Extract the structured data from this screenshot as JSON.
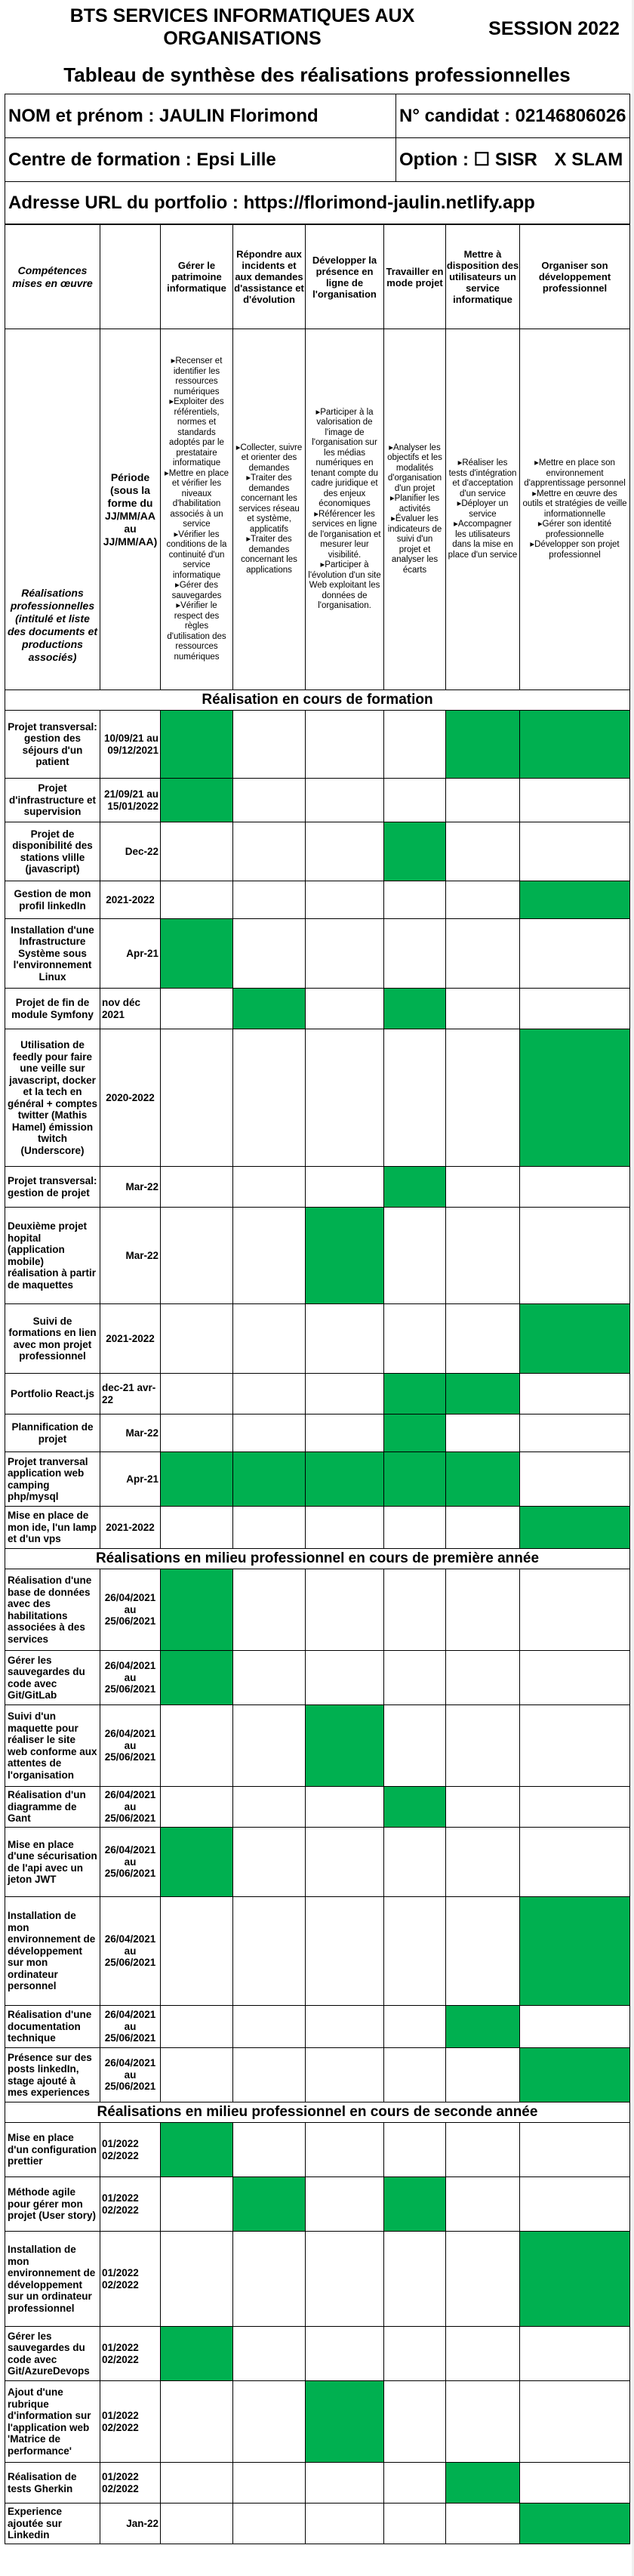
{
  "header": {
    "title_left": "BTS SERVICES INFORMATIQUES AUX ORGANISATIONS",
    "session": "SESSION 2022",
    "subtitle": "Tableau de synthèse des réalisations professionnelles"
  },
  "info": {
    "name": "NOM et prénom : JAULIN Florimond",
    "candidate": "N° candidat : 02146806026",
    "centre": "Centre de formation : Epsi Lille",
    "option_label": "Option :",
    "option_sisr": "☐ SISR",
    "option_slam": "X SLAM",
    "portfolio": "Adresse URL du portfolio : https://florimond-jaulin.netlify.app"
  },
  "competences": {
    "label": "Compétences mises en œuvre",
    "realisations_label": "Réalisations professionnelles (intitulé et liste des documents et productions associés)",
    "periode_label": "Période (sous la forme du JJ/MM/AA au JJ/MM/AA)",
    "columns": [
      "Gérer le patrimoine informatique",
      "Répondre aux incidents et aux demandes d'assistance et d'évolution",
      "Développer la présence en ligne de l'organisation",
      "Travailler en mode projet",
      "Mettre à disposition des utilisateurs un service informatique",
      "Organiser son développement professionnel"
    ],
    "descriptions": [
      "▸Recenser et identifier les ressources numériques ▸Exploiter des référentiels, normes et standards adoptés par le prestataire informatique ▸Mettre en place et vérifier les niveaux d'habilitation associés à un service ▸Vérifier les conditions de la continuité d'un service informatique ▸Gérer des sauvegardes ▸Vérifier le respect des règles d'utilisation des ressources numériques",
      "▸Collecter, suivre et orienter des demandes ▸Traiter des demandes concernant les services réseau et système, applicatifs ▸Traiter des demandes concernant les applications",
      "▸Participer à la valorisation de l'image de l'organisation sur les médias numériques en tenant compte du cadre juridique et des enjeux économiques ▸Référencer les services en ligne de l'organisation et mesurer leur visibilité. ▸Participer à l'évolution d'un site Web exploitant les données de l'organisation.",
      "▸Analyser les objectifs et les modalités d'organisation d'un projet ▸Planifier les activités ▸Évaluer les indicateurs de suivi d'un projet et analyser les écarts",
      "▸Réaliser les tests d'intégration et d'acceptation d'un service ▸Déployer un service ▸Accompagner les utilisateurs dans la mise en place d'un service",
      "▸Mettre en place son environnement d'apprentissage personnel ▸Mettre en œuvre des outils et stratégies de veille informationnelle ▸Gérer son identité professionnelle ▸Développer son projet professionnel"
    ]
  },
  "sections": [
    {
      "title": "Réalisation en cours de formation",
      "rows": [
        {
          "name": "Projet transversal: gestion des séjours d'un patient",
          "periode": "10/09/21 au 09/12/2021",
          "align": "r",
          "marks": [
            1,
            0,
            0,
            0,
            1,
            1
          ],
          "h": 90,
          "center_name": true
        },
        {
          "name": "Projet d'infrastructure et supervision",
          "periode": "21/09/21 au 15/01/2022",
          "align": "r",
          "marks": [
            1,
            0,
            0,
            0,
            0,
            0
          ],
          "h": 58,
          "center_name": true
        },
        {
          "name": "Projet de disponibilité des stations vlille (javascript)",
          "periode": "Dec-22",
          "align": "r",
          "marks": [
            0,
            0,
            0,
            1,
            0,
            0
          ],
          "h": 78,
          "center_name": true
        },
        {
          "name": "Gestion de mon profil linkedIn",
          "periode": "2021-2022",
          "align": "c",
          "marks": [
            0,
            0,
            0,
            0,
            0,
            1
          ],
          "h": 50,
          "center_name": true
        },
        {
          "name": "Installation d'une Infrastructure Système sous l'environnement Linux",
          "periode": "Apr-21",
          "align": "r",
          "marks": [
            1,
            0,
            0,
            0,
            0,
            0
          ],
          "h": 92,
          "center_name": true
        },
        {
          "name": "Projet de fin de module Symfony",
          "periode": "nov déc 2021",
          "align": "l",
          "marks": [
            0,
            1,
            0,
            1,
            0,
            0
          ],
          "h": 54,
          "center_name": true
        },
        {
          "name": "Utilisation de feedly pour faire une veille sur javascript, docker et la tech en général + comptes twitter (Mathis Hamel) émission twitch (Underscore)",
          "periode": "2020-2022",
          "align": "c",
          "marks": [
            0,
            0,
            0,
            0,
            0,
            1
          ],
          "h": 182,
          "center_name": true
        },
        {
          "name": "Projet transversal: gestion de projet",
          "periode": "Mar-22",
          "align": "r",
          "marks": [
            0,
            0,
            0,
            1,
            0,
            0
          ],
          "h": 54,
          "center_name": false
        },
        {
          "name": "Deuxième projet hopital (application mobile) réalisation à partir de maquettes",
          "periode": "Mar-22",
          "align": "r",
          "marks": [
            0,
            0,
            1,
            0,
            0,
            0
          ],
          "h": 128,
          "center_name": false
        },
        {
          "name": "Suivi de formations en lien avec mon projet professionnel",
          "periode": "2021-2022",
          "align": "c",
          "marks": [
            0,
            0,
            0,
            0,
            0,
            1
          ],
          "h": 92,
          "center_name": true
        },
        {
          "name": "Portfolio React.js",
          "periode": "dec-21 avr-22",
          "align": "l",
          "marks": [
            0,
            0,
            0,
            1,
            1,
            0
          ],
          "h": 54,
          "center_name": true
        },
        {
          "name": "Plannification de projet",
          "periode": "Mar-22",
          "align": "r",
          "marks": [
            0,
            0,
            0,
            1,
            0,
            0
          ],
          "h": 50,
          "center_name": true
        },
        {
          "name": "Projet tranversal application web camping php/mysql",
          "periode": "Apr-21",
          "align": "r",
          "marks": [
            1,
            1,
            1,
            1,
            1,
            0
          ],
          "h": 72,
          "center_name": false
        },
        {
          "name": "Mise en place de mon ide, l'un lamp et d'un vps",
          "periode": "2021-2022",
          "align": "c",
          "marks": [
            0,
            0,
            0,
            0,
            0,
            1
          ],
          "h": 56,
          "center_name": false
        }
      ]
    },
    {
      "title": "Réalisations en milieu professionnel en cours de première année",
      "rows": [
        {
          "name": "Réalisation d'une base de données avec des habilitations associées à des services",
          "periode": "26/04/2021 au 25/06/2021",
          "align": "c",
          "marks": [
            1,
            0,
            0,
            0,
            0,
            0
          ],
          "h": 108,
          "center_name": false
        },
        {
          "name": "Gérer les sauvegardes du code avec Git/GitLab",
          "periode": "26/04/2021 au 25/06/2021",
          "align": "c",
          "marks": [
            1,
            0,
            0,
            0,
            0,
            0
          ],
          "h": 72,
          "center_name": false
        },
        {
          "name": "Suivi d'un maquette pour réaliser le site web conforme aux attentes de l'organisation",
          "periode": "26/04/2021 au 25/06/2021",
          "align": "c",
          "marks": [
            0,
            0,
            1,
            0,
            0,
            0
          ],
          "h": 108,
          "center_name": false
        },
        {
          "name": "Réalisation d'un diagramme de Gant",
          "periode": "26/04/2021 au 25/06/2021",
          "align": "c",
          "marks": [
            0,
            0,
            0,
            1,
            0,
            0
          ],
          "h": 54,
          "center_name": false
        },
        {
          "name": "Mise en place d'une sécurisation de l'api avec un jeton JWT",
          "periode": "26/04/2021 au 25/06/2021",
          "align": "c",
          "marks": [
            1,
            0,
            0,
            0,
            0,
            0
          ],
          "h": 92,
          "center_name": false
        },
        {
          "name": "Installation de mon environnement de développement sur mon ordinateur personnel",
          "periode": "26/04/2021 au 25/06/2021",
          "align": "c",
          "marks": [
            0,
            0,
            0,
            0,
            0,
            1
          ],
          "h": 144,
          "center_name": false
        },
        {
          "name": "Réalisation d'une documentation technique",
          "periode": "26/04/2021 au 25/06/2021",
          "align": "c",
          "marks": [
            0,
            0,
            0,
            0,
            1,
            0
          ],
          "h": 56,
          "center_name": false
        },
        {
          "name": "Présence sur des posts linkedIn, stage ajouté à mes experiences",
          "periode": "26/04/2021 au 25/06/2021",
          "align": "c",
          "marks": [
            0,
            0,
            0,
            0,
            0,
            1
          ],
          "h": 72,
          "center_name": false
        }
      ]
    },
    {
      "title": "Réalisations en milieu professionnel en cours de seconde année",
      "rows": [
        {
          "name": "Mise en place d'un configuration prettier",
          "periode": "01/2022 02/2022",
          "align": "l",
          "marks": [
            1,
            0,
            0,
            0,
            0,
            0
          ],
          "h": 72,
          "center_name": false
        },
        {
          "name": "Méthode agile pour gérer mon projet (User story)",
          "periode": "01/2022 02/2022",
          "align": "l",
          "marks": [
            0,
            1,
            0,
            1,
            0,
            0
          ],
          "h": 72,
          "center_name": false
        },
        {
          "name": "Installation de mon environnement de développement sur un ordinateur professionnel",
          "periode": "01/2022 02/2022",
          "align": "l",
          "marks": [
            0,
            0,
            0,
            0,
            0,
            1
          ],
          "h": 126,
          "center_name": false
        },
        {
          "name": "Gérer les sauvegardes du code avec Git/AzureDevops",
          "periode": "01/2022 02/2022",
          "align": "l",
          "marks": [
            1,
            0,
            0,
            0,
            0,
            0
          ],
          "h": 72,
          "center_name": false
        },
        {
          "name": "Ajout d'une rubrique d'information sur l'application web 'Matrice de performance'",
          "periode": "01/2022 02/2022",
          "align": "l",
          "marks": [
            0,
            0,
            1,
            0,
            0,
            0
          ],
          "h": 108,
          "center_name": false
        },
        {
          "name": "Réalisation de tests Gherkin",
          "periode": "01/2022 02/2022",
          "align": "l",
          "marks": [
            0,
            0,
            0,
            0,
            1,
            0
          ],
          "h": 54,
          "center_name": false
        },
        {
          "name": "Experience ajoutée sur Linkedin",
          "periode": "Jan-22",
          "align": "r",
          "marks": [
            0,
            0,
            0,
            0,
            0,
            1
          ],
          "h": 54,
          "center_name": false
        }
      ]
    }
  ]
}
